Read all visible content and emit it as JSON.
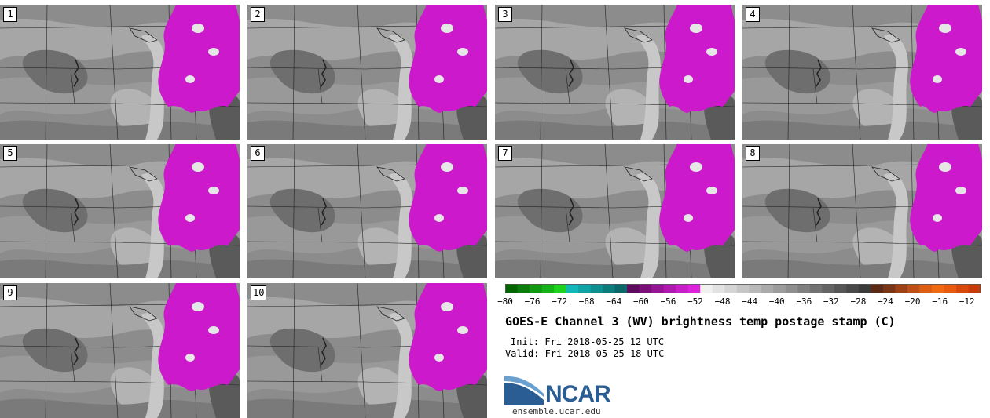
{
  "title": "GOES-E Channel 3 (WV) brightness temp postage stamp (C)",
  "init": "Init: Fri 2018-05-25 12 UTC",
  "valid": "Valid: Fri 2018-05-25 18 UTC",
  "logo": {
    "text": "NCAR",
    "site": "ensemble.ucar.edu"
  },
  "members": [
    "1",
    "2",
    "3",
    "4",
    "5",
    "6",
    "7",
    "8",
    "9",
    "10"
  ],
  "colorbar": {
    "ticks": [
      "−80",
      "−76",
      "−72",
      "−68",
      "−64",
      "−60",
      "−56",
      "−52",
      "−48",
      "−44",
      "−40",
      "−36",
      "−32",
      "−28",
      "−24",
      "−20",
      "−16",
      "−12"
    ],
    "colors": [
      "#006400",
      "#0a7d0a",
      "#119911",
      "#16b316",
      "#1ed21e",
      "#12b7b7",
      "#10a3a3",
      "#0e8f8f",
      "#0b7b7b",
      "#096767",
      "#5e0a5e",
      "#7a0f7a",
      "#951495",
      "#b019b0",
      "#c81ec8",
      "#dd21dd",
      "#f0f0f0",
      "#e2e2e2",
      "#d4d4d4",
      "#c6c6c6",
      "#b8b8b8",
      "#aaaaaa",
      "#9c9c9c",
      "#8e8e8e",
      "#808080",
      "#727272",
      "#646464",
      "#565656",
      "#484848",
      "#3a3a3a",
      "#5a2a14",
      "#7a3514",
      "#9c4214",
      "#bd5014",
      "#dc5e14",
      "#f06a12",
      "#e85a10",
      "#d84a0c",
      "#c83a08"
    ],
    "range": [
      -80,
      -10
    ]
  }
}
